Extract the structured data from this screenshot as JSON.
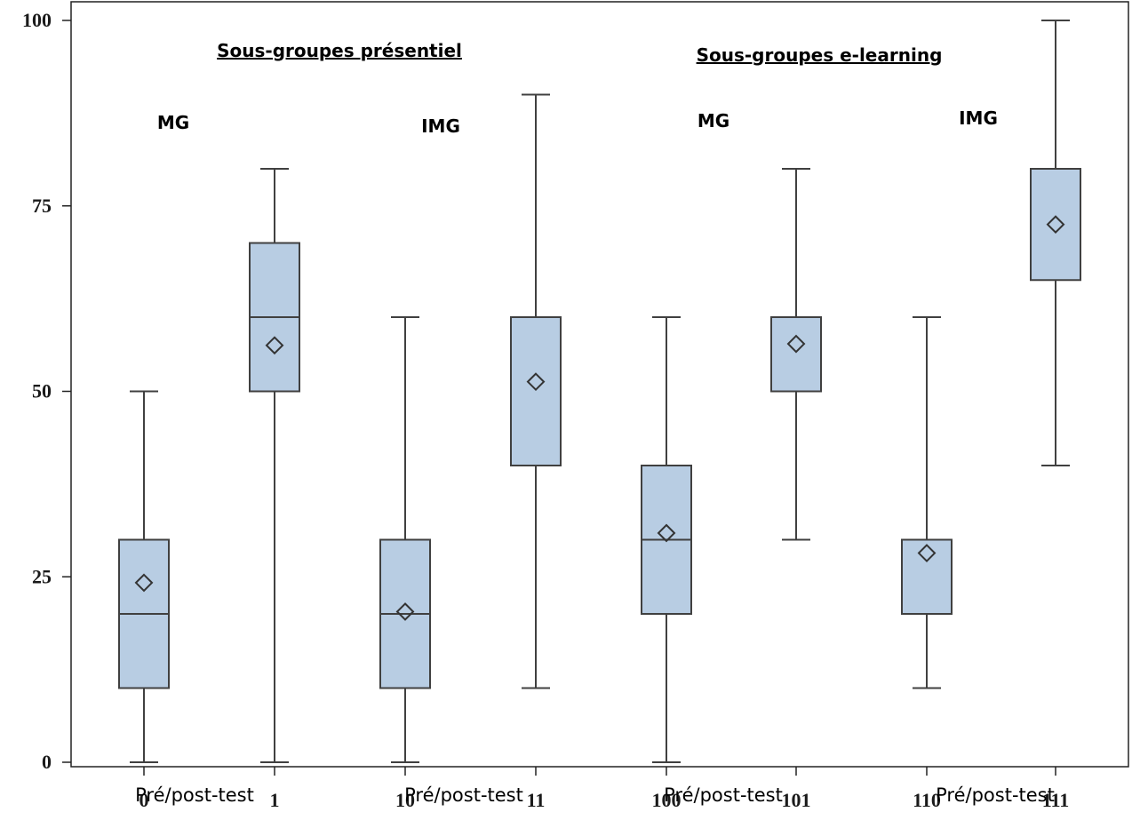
{
  "chart_data": {
    "type": "box",
    "ylim": [
      0,
      100
    ],
    "yticks": [
      0,
      25,
      50,
      75,
      100
    ],
    "grid": false,
    "box_color": "#b8cde3",
    "line_color": "#404040",
    "categories": [
      "0",
      "1",
      "10",
      "11",
      "100",
      "101",
      "110",
      "111"
    ],
    "boxes": [
      {
        "x": "0",
        "min": 0,
        "q1": 10,
        "median": 20,
        "q3": 30,
        "max": 50,
        "mean": 24.2
      },
      {
        "x": "1",
        "min": 0,
        "q1": 50,
        "median": 60,
        "q3": 70,
        "max": 80,
        "mean": 56.2
      },
      {
        "x": "10",
        "min": 0,
        "q1": 10,
        "median": 20,
        "q3": 30,
        "max": 60,
        "mean": 20.3
      },
      {
        "x": "11",
        "min": 10,
        "q1": 40,
        "median": 60,
        "q3": 60,
        "max": 90,
        "mean": 51.3
      },
      {
        "x": "100",
        "min": 0,
        "q1": 20,
        "median": 30,
        "q3": 40,
        "max": 60,
        "mean": 30.9
      },
      {
        "x": "101",
        "min": 30,
        "q1": 50,
        "median": 60,
        "q3": 60,
        "max": 80,
        "mean": 56.4
      },
      {
        "x": "110",
        "min": 10,
        "q1": 20,
        "median": 30,
        "q3": 30,
        "max": 60,
        "mean": 28.2
      },
      {
        "x": "111",
        "min": 40,
        "q1": 65,
        "median": 80,
        "q3": 80,
        "max": 100,
        "mean": 72.5
      }
    ],
    "annotations": {
      "group_titles": [
        "Sous-groupes présentiel",
        "Sous-groupes e-learning"
      ],
      "subgroup_labels": [
        "MG",
        "IMG",
        "MG",
        "IMG"
      ],
      "prepost_labels": [
        "Pré/post-test",
        "Pré/post-test",
        "Pré/post-test",
        "Pré/post-test"
      ]
    }
  }
}
